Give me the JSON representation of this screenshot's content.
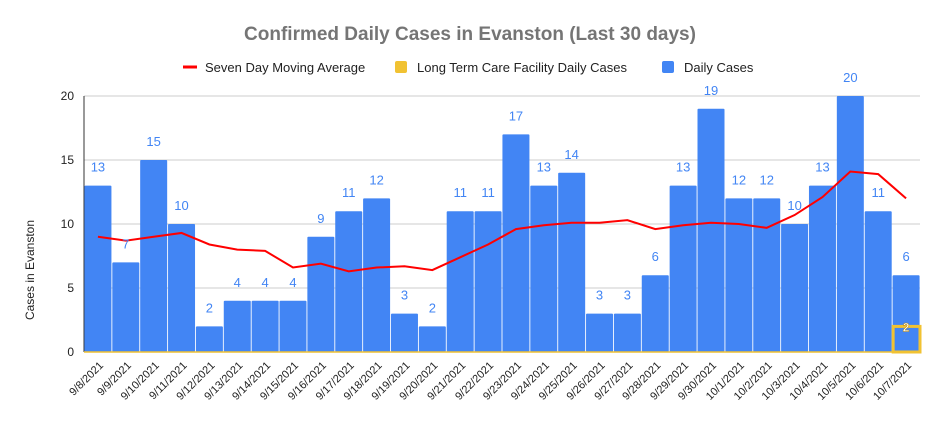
{
  "chart_data": {
    "type": "bar",
    "title": "Confirmed Daily Cases in Evanston (Last 30 days)",
    "xlabel": "",
    "ylabel": "Cases in Evanston",
    "ylim": [
      0,
      20
    ],
    "yticks": [
      0,
      5,
      10,
      15,
      20
    ],
    "grid": true,
    "legend_position": "top",
    "categories": [
      "9/8/2021",
      "9/9/2021",
      "9/10/2021",
      "9/11/2021",
      "9/12/2021",
      "9/13/2021",
      "9/14/2021",
      "9/15/2021",
      "9/16/2021",
      "9/17/2021",
      "9/18/2021",
      "9/19/2021",
      "9/20/2021",
      "9/21/2021",
      "9/22/2021",
      "9/23/2021",
      "9/24/2021",
      "9/25/2021",
      "9/26/2021",
      "9/27/2021",
      "9/28/2021",
      "9/29/2021",
      "9/30/2021",
      "10/1/2021",
      "10/2/2021",
      "10/3/2021",
      "10/4/2021",
      "10/5/2021",
      "10/6/2021",
      "10/7/2021"
    ],
    "series": [
      {
        "name": "Seven Day Moving Average",
        "type": "line",
        "color": "#ff0000",
        "values": [
          9.0,
          8.7,
          9.0,
          9.3,
          8.4,
          8.0,
          7.9,
          6.6,
          6.9,
          6.3,
          6.6,
          6.7,
          6.4,
          7.4,
          8.4,
          9.6,
          9.9,
          10.1,
          10.1,
          10.3,
          9.6,
          9.9,
          10.1,
          10.0,
          9.7,
          10.7,
          12.1,
          14.1,
          13.9,
          12.0
        ]
      },
      {
        "name": "Long Term Care Facility Daily Cases",
        "type": "bar",
        "color": "#f1c232",
        "values": [
          0,
          0,
          0,
          0,
          0,
          0,
          0,
          0,
          0,
          0,
          0,
          0,
          0,
          0,
          0,
          0,
          0,
          0,
          0,
          0,
          0,
          0,
          0,
          0,
          0,
          0,
          0,
          0,
          0,
          2
        ]
      },
      {
        "name": "Daily Cases",
        "type": "bar",
        "color": "#4285f4",
        "values": [
          13,
          7,
          15,
          10,
          2,
          4,
          4,
          4,
          9,
          11,
          12,
          3,
          2,
          11,
          11,
          17,
          13,
          14,
          3,
          3,
          6,
          13,
          19,
          12,
          12,
          10,
          13,
          20,
          11,
          6
        ]
      }
    ]
  }
}
